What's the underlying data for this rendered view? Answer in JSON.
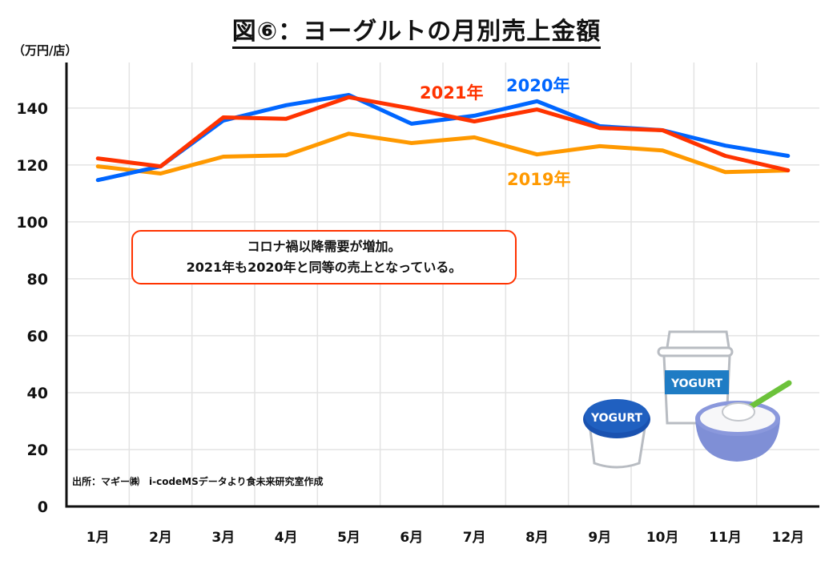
{
  "title": "図⑥：ヨーグルトの月別売上金額",
  "annotation": {
    "line1": "コロナ禍以降需要が増加。",
    "line2": "2021年も2020年と同等の売上となっている。",
    "border_color": "#FF3300"
  },
  "source": "出所：マギー㈱　i-codeMSデータより食未来研究室作成",
  "illustration": {
    "cup_label": "YOGURT",
    "tub_label": "YOGURT"
  },
  "chart_data": {
    "type": "line",
    "title": "図⑥：ヨーグルトの月別売上金額",
    "ylabel": "（万円/店）",
    "xlabel": "",
    "categories": [
      "1月",
      "2月",
      "3月",
      "4月",
      "5月",
      "6月",
      "7月",
      "8月",
      "9月",
      "10月",
      "11月",
      "12月"
    ],
    "yticks": [
      0,
      20,
      40,
      60,
      80,
      100,
      120,
      140
    ],
    "ylim": [
      0,
      156
    ],
    "grid": true,
    "legend": "inline-labels",
    "series": [
      {
        "name": "2019年",
        "color": "#FF9900",
        "values": [
          119.5,
          117,
          122.9,
          123.4,
          131,
          127.7,
          129.7,
          123.7,
          126.6,
          125.1,
          117.5,
          118.1
        ]
      },
      {
        "name": "2020年",
        "color": "#0066FF",
        "values": [
          114.7,
          119.5,
          135.6,
          141,
          144.6,
          134.5,
          137.3,
          142.4,
          133.6,
          132.2,
          126.8,
          123.2
        ]
      },
      {
        "name": "2021年",
        "color": "#FF3300",
        "values": [
          122.3,
          119.5,
          136.7,
          136.2,
          143.8,
          139.8,
          135.3,
          139.5,
          133,
          132.2,
          123.2,
          118.1
        ]
      }
    ]
  }
}
